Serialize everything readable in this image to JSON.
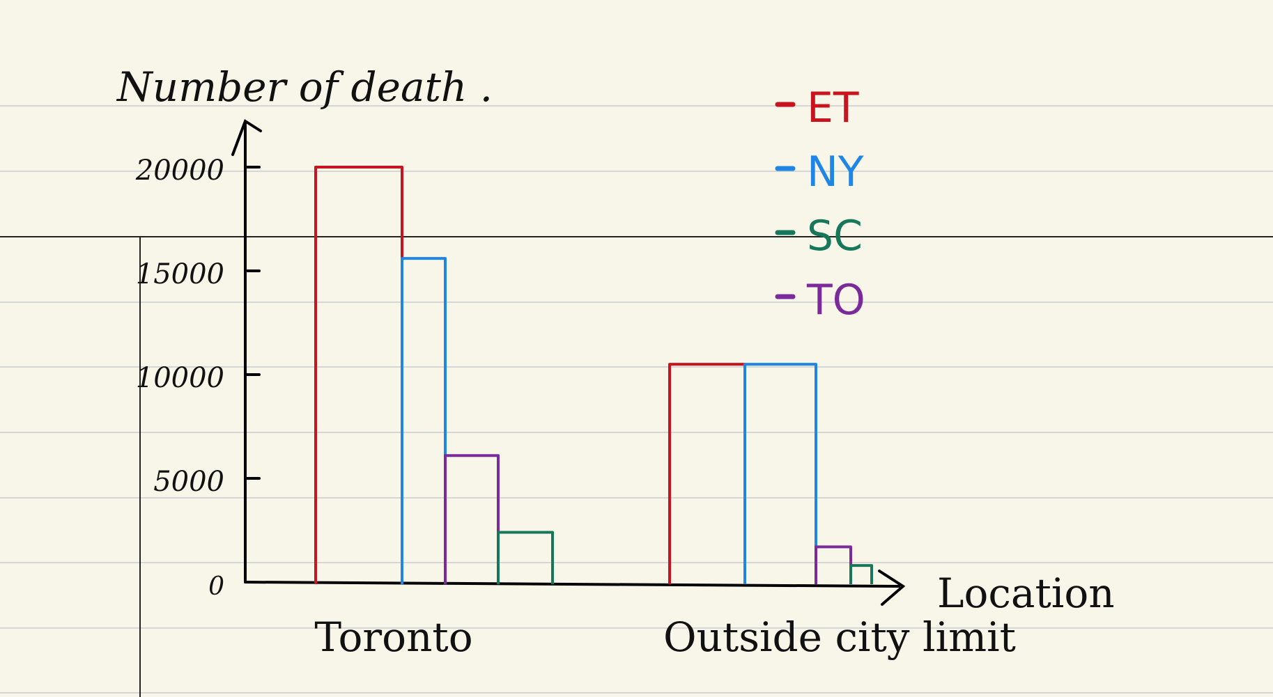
{
  "chart_data": {
    "type": "bar",
    "ylabel": "Number of death .",
    "xlabel": "Location",
    "categories": [
      "Toronto",
      "Outside city limit"
    ],
    "ylim": [
      0,
      20000
    ],
    "yticks": [
      0,
      5000,
      10000,
      15000,
      20000
    ],
    "ytick_labels": [
      "0",
      "5000",
      "10000",
      "15000",
      "20000"
    ],
    "series": [
      {
        "name": "ET",
        "color": "#c8141e",
        "values": [
          20000,
          10500
        ]
      },
      {
        "name": "NY",
        "color": "#1f86e6",
        "values": [
          15600,
          10500
        ]
      },
      {
        "name": "TO",
        "color": "#7a2a9a",
        "values": [
          6100,
          1700
        ]
      },
      {
        "name": "SC",
        "color": "#16775a",
        "values": [
          2400,
          800
        ]
      }
    ],
    "legend": {
      "position": "top-right",
      "order": [
        "ET",
        "NY",
        "SC",
        "TO"
      ]
    },
    "grid": false,
    "background": "lined notebook paper"
  }
}
